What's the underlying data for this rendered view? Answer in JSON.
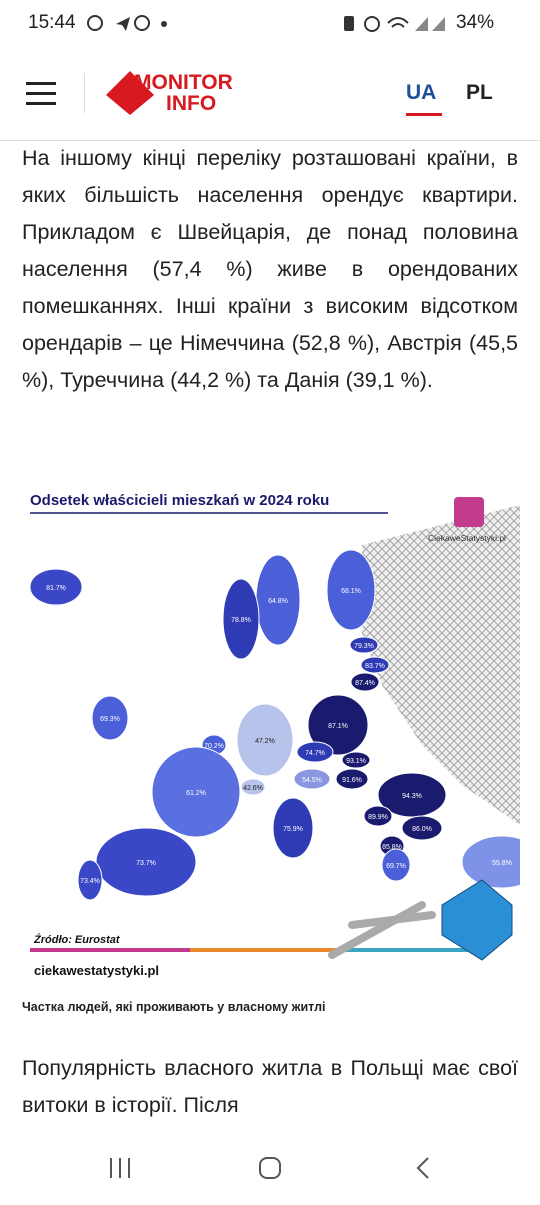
{
  "status_bar": {
    "time": "15:44",
    "battery": "34%"
  },
  "header": {
    "logo_top": "MONITOR",
    "logo_bottom": "INFO",
    "languages": [
      "UA",
      "PL"
    ]
  },
  "article": {
    "paragraph_1": "На іншому кінці переліку розташовані країни, в яких більшість населення орендує квартири. Прикладом є Швейцарія, де понад половина населення (57,4 %) живе в орендованих помешканнях. Інші країни з високим відсотком орендарів – це Німеччина (52,8 %), Австрія (45,5 %), Туреччина (44,2 %) та Данія (39,1 %).",
    "figure": {
      "title": "Odsetek właścicieli mieszkań w 2024 roku",
      "brand": "CiekaweStatystyki.pl",
      "labels": [
        "81.7%",
        "64.8%",
        "68.1%",
        "78.8%",
        "79.3%",
        "83.7%",
        "87.4%",
        "69.3%",
        "70.2%",
        "47.2%",
        "87.1%",
        "74.7%",
        "93.1%",
        "54.5%",
        "91.6%",
        "42.6%",
        "61.2%",
        "94.3%",
        "75.9%",
        "89.9%",
        "86.0%",
        "85.8%",
        "69.7%",
        "73.7%",
        "73.4%",
        "55.8%"
      ],
      "source": "Źródło: Eurostat",
      "url": "ciekawestatystyki.pl"
    },
    "caption": "Частка людей, які проживають у власному житлі",
    "paragraph_2": "Популярність власного житла в Польщі має свої витоки в історії. Після"
  }
}
